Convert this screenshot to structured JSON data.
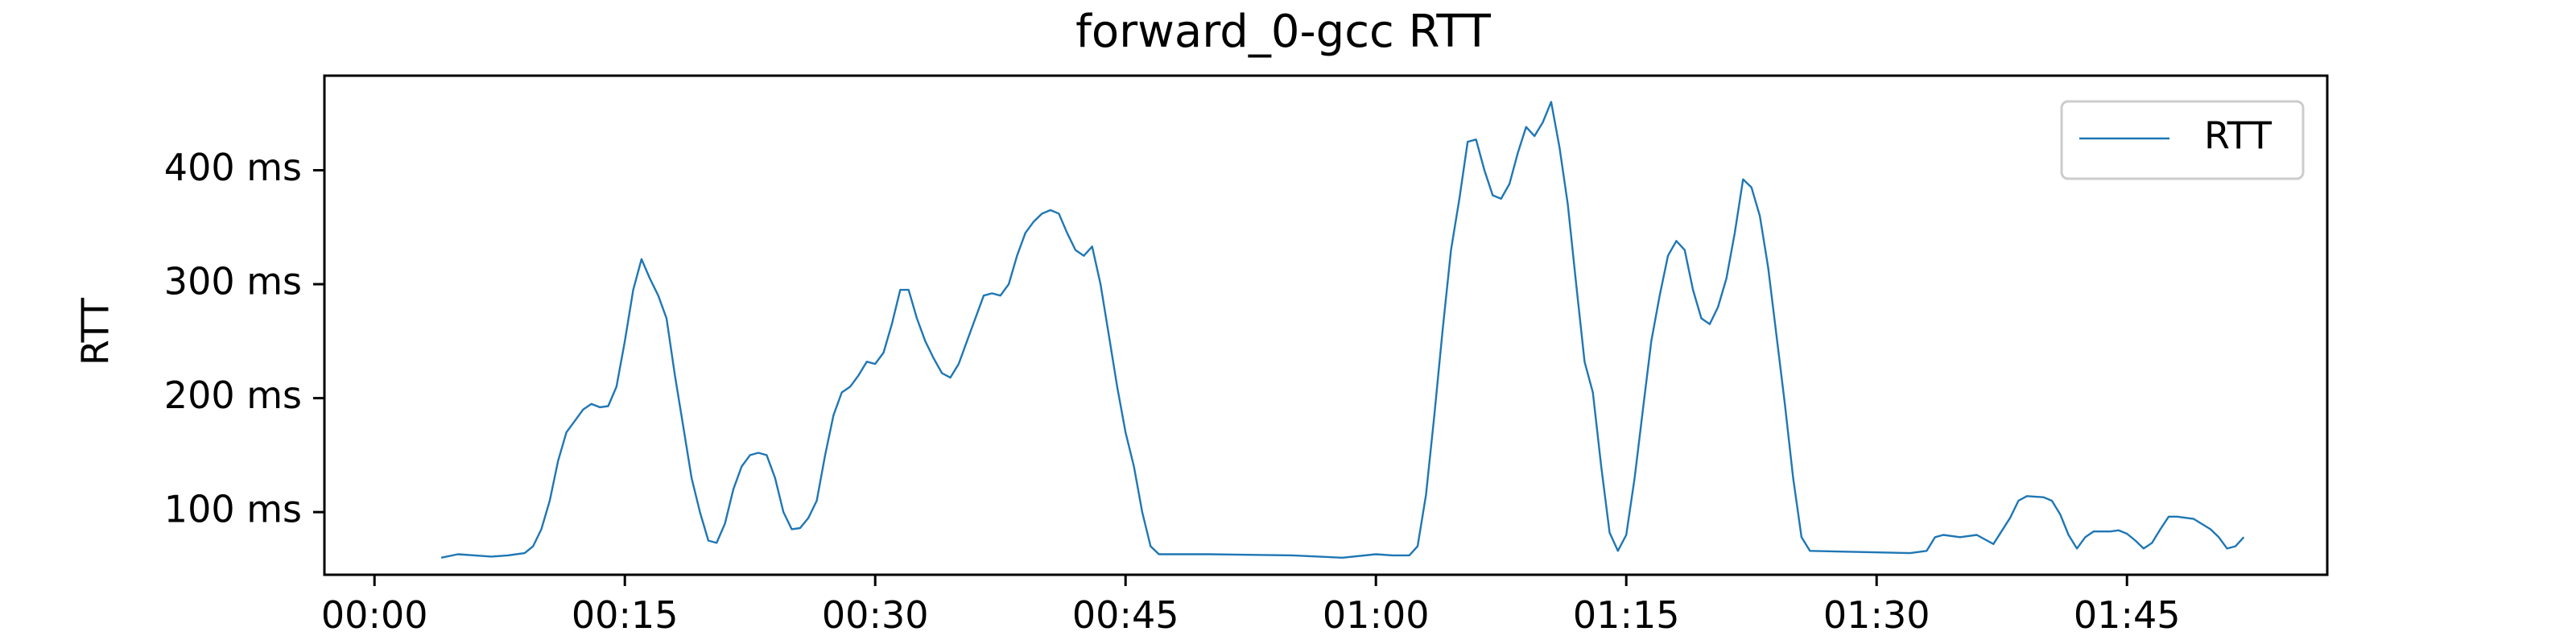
{
  "chart_data": {
    "type": "line",
    "title": "forward_0-gcc RTT",
    "xlabel": "",
    "ylabel": "RTT",
    "x_unit": "seconds",
    "xlim": [
      -3,
      117
    ],
    "ylim": [
      45,
      483
    ],
    "grid": false,
    "legend_position": "top-right",
    "x_ticks": [
      {
        "value": 0,
        "label": "00:00"
      },
      {
        "value": 15,
        "label": "00:15"
      },
      {
        "value": 30,
        "label": "00:30"
      },
      {
        "value": 45,
        "label": "00:45"
      },
      {
        "value": 60,
        "label": "01:00"
      },
      {
        "value": 75,
        "label": "01:15"
      },
      {
        "value": 90,
        "label": "01:30"
      },
      {
        "value": 105,
        "label": "01:45"
      }
    ],
    "y_ticks": [
      {
        "value": 100,
        "label": "100 ms"
      },
      {
        "value": 200,
        "label": "200 ms"
      },
      {
        "value": 300,
        "label": "300 ms"
      },
      {
        "value": 400,
        "label": "400 ms"
      }
    ],
    "series": [
      {
        "name": "RTT",
        "color": "#1f77b4",
        "points": [
          [
            4,
            60
          ],
          [
            5,
            63
          ],
          [
            6,
            62
          ],
          [
            7,
            61
          ],
          [
            8,
            62
          ],
          [
            9,
            64
          ],
          [
            9.5,
            70
          ],
          [
            10,
            85
          ],
          [
            10.5,
            110
          ],
          [
            11,
            145
          ],
          [
            11.5,
            170
          ],
          [
            12,
            180
          ],
          [
            12.5,
            190
          ],
          [
            13,
            195
          ],
          [
            13.5,
            192
          ],
          [
            14,
            193
          ],
          [
            14.5,
            210
          ],
          [
            15,
            250
          ],
          [
            15.5,
            295
          ],
          [
            16,
            322
          ],
          [
            16.5,
            305
          ],
          [
            17,
            290
          ],
          [
            17.5,
            270
          ],
          [
            18,
            220
          ],
          [
            18.5,
            175
          ],
          [
            19,
            130
          ],
          [
            19.5,
            100
          ],
          [
            20,
            75
          ],
          [
            20.5,
            73
          ],
          [
            21,
            90
          ],
          [
            21.5,
            120
          ],
          [
            22,
            140
          ],
          [
            22.5,
            150
          ],
          [
            23,
            152
          ],
          [
            23.5,
            150
          ],
          [
            24,
            130
          ],
          [
            24.5,
            100
          ],
          [
            25,
            85
          ],
          [
            25.5,
            86
          ],
          [
            26,
            95
          ],
          [
            26.5,
            110
          ],
          [
            27,
            150
          ],
          [
            27.5,
            185
          ],
          [
            28,
            205
          ],
          [
            28.5,
            210
          ],
          [
            29,
            220
          ],
          [
            29.5,
            232
          ],
          [
            30,
            230
          ],
          [
            30.5,
            240
          ],
          [
            31,
            265
          ],
          [
            31.5,
            295
          ],
          [
            32,
            295
          ],
          [
            32.5,
            270
          ],
          [
            33,
            250
          ],
          [
            33.5,
            235
          ],
          [
            34,
            222
          ],
          [
            34.5,
            218
          ],
          [
            35,
            230
          ],
          [
            35.5,
            250
          ],
          [
            36,
            270
          ],
          [
            36.5,
            290
          ],
          [
            37,
            292
          ],
          [
            37.5,
            290
          ],
          [
            38,
            300
          ],
          [
            38.5,
            325
          ],
          [
            39,
            345
          ],
          [
            39.5,
            355
          ],
          [
            40,
            362
          ],
          [
            40.5,
            365
          ],
          [
            41,
            362
          ],
          [
            41.5,
            345
          ],
          [
            42,
            330
          ],
          [
            42.5,
            325
          ],
          [
            43,
            333
          ],
          [
            43.5,
            300
          ],
          [
            44,
            255
          ],
          [
            44.5,
            210
          ],
          [
            45,
            170
          ],
          [
            45.5,
            140
          ],
          [
            46,
            100
          ],
          [
            46.5,
            70
          ],
          [
            47,
            63
          ],
          [
            50,
            63
          ],
          [
            55,
            62
          ],
          [
            58,
            60
          ],
          [
            60,
            63
          ],
          [
            61,
            62
          ],
          [
            62,
            62
          ],
          [
            62.5,
            70
          ],
          [
            63,
            115
          ],
          [
            63.5,
            185
          ],
          [
            64,
            260
          ],
          [
            64.5,
            330
          ],
          [
            65,
            375
          ],
          [
            65.5,
            425
          ],
          [
            66,
            427
          ],
          [
            66.5,
            400
          ],
          [
            67,
            378
          ],
          [
            67.5,
            375
          ],
          [
            68,
            388
          ],
          [
            68.5,
            415
          ],
          [
            69,
            438
          ],
          [
            69.5,
            430
          ],
          [
            70,
            442
          ],
          [
            70.5,
            460
          ],
          [
            71,
            420
          ],
          [
            71.5,
            370
          ],
          [
            72,
            300
          ],
          [
            72.5,
            232
          ],
          [
            73,
            205
          ],
          [
            73.5,
            140
          ],
          [
            74,
            82
          ],
          [
            74.5,
            66
          ],
          [
            75,
            80
          ],
          [
            75.5,
            130
          ],
          [
            76,
            190
          ],
          [
            76.5,
            250
          ],
          [
            77,
            290
          ],
          [
            77.5,
            325
          ],
          [
            78,
            338
          ],
          [
            78.5,
            330
          ],
          [
            79,
            295
          ],
          [
            79.5,
            270
          ],
          [
            80,
            265
          ],
          [
            80.5,
            280
          ],
          [
            81,
            305
          ],
          [
            81.5,
            345
          ],
          [
            82,
            392
          ],
          [
            82.5,
            385
          ],
          [
            83,
            360
          ],
          [
            83.5,
            315
          ],
          [
            84,
            255
          ],
          [
            84.5,
            195
          ],
          [
            85,
            130
          ],
          [
            85.5,
            78
          ],
          [
            86,
            66
          ],
          [
            89,
            65
          ],
          [
            92,
            64
          ],
          [
            93,
            66
          ],
          [
            93.5,
            78
          ],
          [
            94,
            80
          ],
          [
            95,
            78
          ],
          [
            96,
            80
          ],
          [
            97,
            72
          ],
          [
            98,
            95
          ],
          [
            98.5,
            110
          ],
          [
            99,
            114
          ],
          [
            100,
            113
          ],
          [
            100.5,
            110
          ],
          [
            101,
            98
          ],
          [
            101.5,
            80
          ],
          [
            102,
            68
          ],
          [
            102.5,
            78
          ],
          [
            103,
            83
          ],
          [
            104,
            83
          ],
          [
            104.5,
            84
          ],
          [
            105,
            81
          ],
          [
            105.5,
            75
          ],
          [
            106,
            68
          ],
          [
            106.5,
            73
          ],
          [
            107,
            85
          ],
          [
            107.5,
            96
          ],
          [
            108,
            96
          ],
          [
            109,
            94
          ],
          [
            110,
            85
          ],
          [
            110.5,
            78
          ],
          [
            111,
            68
          ],
          [
            111.5,
            70
          ],
          [
            112,
            78
          ]
        ]
      }
    ]
  }
}
